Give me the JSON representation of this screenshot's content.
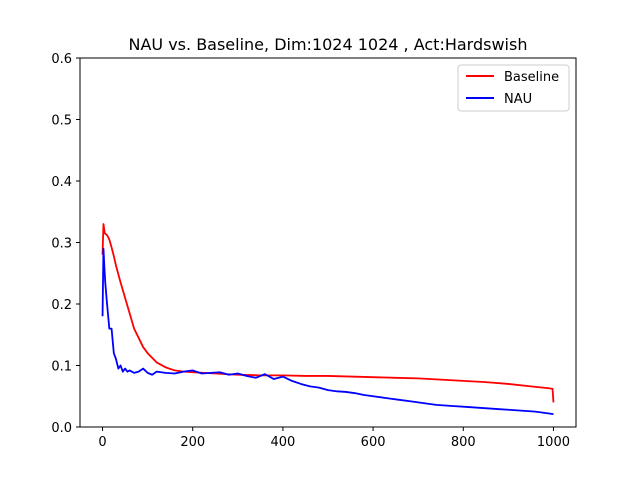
{
  "chart_data": {
    "type": "line",
    "title": "NAU vs. Baseline, Dim:1024 1024 , Act:Hardswish",
    "xlabel": "",
    "ylabel": "",
    "xlim": [
      -50,
      1050
    ],
    "ylim": [
      0.0,
      0.6
    ],
    "xticks": [
      0,
      200,
      400,
      600,
      800,
      1000
    ],
    "xtick_labels": [
      "0",
      "200",
      "400",
      "600",
      "800",
      "1000"
    ],
    "yticks": [
      0.0,
      0.1,
      0.2,
      0.3,
      0.4,
      0.5,
      0.6
    ],
    "ytick_labels": [
      "0.0",
      "0.1",
      "0.2",
      "0.3",
      "0.4",
      "0.5",
      "0.6"
    ],
    "grid": false,
    "legend_position": "upper right",
    "series": [
      {
        "name": "Baseline",
        "color": "#ff0000",
        "x": [
          0,
          2,
          5,
          10,
          15,
          20,
          25,
          30,
          40,
          50,
          60,
          70,
          80,
          90,
          100,
          120,
          140,
          160,
          180,
          200,
          250,
          300,
          350,
          400,
          450,
          500,
          550,
          600,
          650,
          700,
          750,
          800,
          850,
          900,
          950,
          990,
          998,
          1000
        ],
        "y": [
          0.28,
          0.33,
          0.315,
          0.312,
          0.305,
          0.292,
          0.278,
          0.262,
          0.235,
          0.21,
          0.185,
          0.16,
          0.145,
          0.13,
          0.12,
          0.105,
          0.097,
          0.092,
          0.09,
          0.089,
          0.087,
          0.085,
          0.084,
          0.084,
          0.083,
          0.083,
          0.082,
          0.081,
          0.08,
          0.079,
          0.077,
          0.075,
          0.073,
          0.07,
          0.066,
          0.063,
          0.062,
          0.04
        ]
      },
      {
        "name": "NAU",
        "color": "#0000ff",
        "x": [
          0,
          2,
          4,
          6,
          10,
          15,
          20,
          25,
          30,
          35,
          40,
          45,
          50,
          55,
          60,
          70,
          80,
          90,
          100,
          110,
          120,
          140,
          160,
          180,
          200,
          220,
          240,
          260,
          280,
          300,
          320,
          340,
          360,
          380,
          400,
          420,
          440,
          460,
          480,
          500,
          520,
          540,
          560,
          580,
          600,
          620,
          640,
          660,
          680,
          700,
          720,
          740,
          760,
          780,
          800,
          820,
          840,
          860,
          880,
          900,
          920,
          940,
          960,
          980,
          1000
        ],
        "y": [
          0.18,
          0.29,
          0.26,
          0.235,
          0.2,
          0.16,
          0.16,
          0.12,
          0.11,
          0.095,
          0.1,
          0.09,
          0.095,
          0.09,
          0.092,
          0.088,
          0.09,
          0.095,
          0.088,
          0.085,
          0.09,
          0.088,
          0.087,
          0.09,
          0.092,
          0.087,
          0.088,
          0.089,
          0.085,
          0.087,
          0.083,
          0.08,
          0.086,
          0.078,
          0.082,
          0.075,
          0.07,
          0.066,
          0.064,
          0.06,
          0.058,
          0.057,
          0.055,
          0.052,
          0.05,
          0.048,
          0.046,
          0.044,
          0.042,
          0.04,
          0.038,
          0.036,
          0.035,
          0.034,
          0.033,
          0.032,
          0.031,
          0.03,
          0.029,
          0.028,
          0.027,
          0.026,
          0.025,
          0.023,
          0.021
        ]
      }
    ]
  }
}
